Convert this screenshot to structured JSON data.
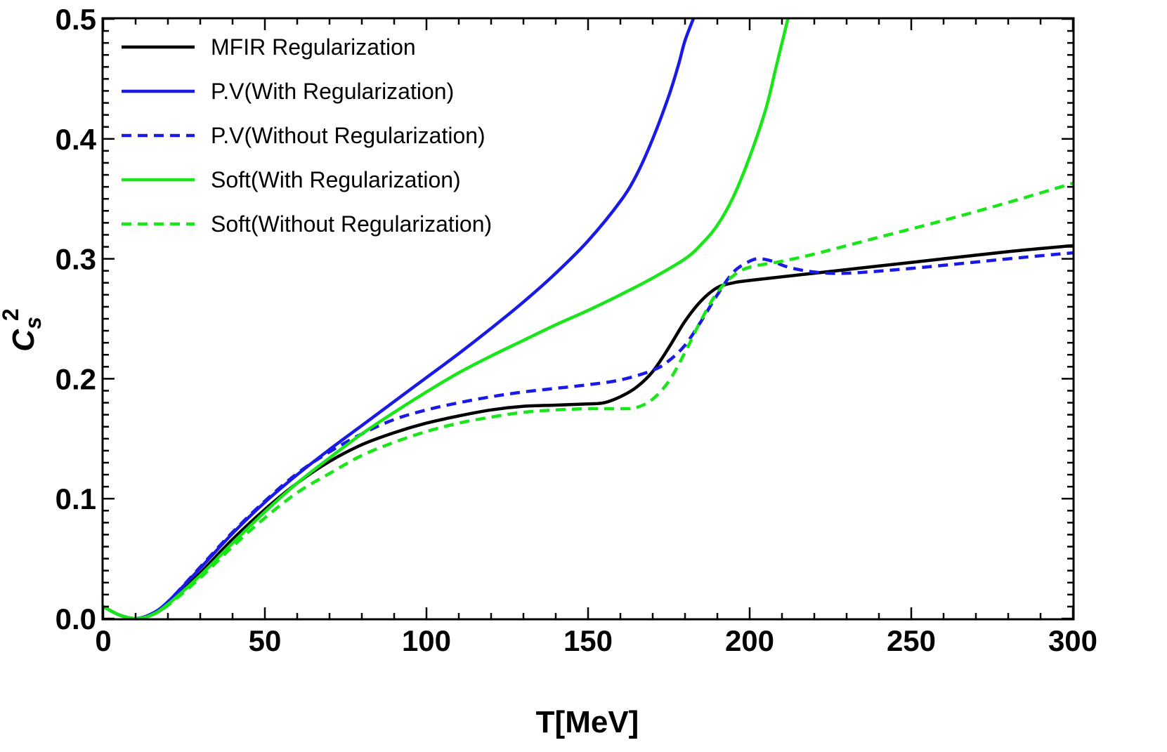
{
  "chart_data": {
    "type": "line",
    "xlabel": "T[MeV]",
    "ylabel": {
      "base": "C",
      "sub": "s",
      "sup": "2"
    },
    "xlim": [
      0,
      300
    ],
    "ylim": [
      0,
      0.5
    ],
    "xticks": [
      0,
      50,
      100,
      150,
      200,
      250,
      300
    ],
    "xtick_labels": [
      "0",
      "50",
      "100",
      "150",
      "200",
      "250",
      "300"
    ],
    "yticks": [
      0,
      0.1,
      0.2,
      0.3,
      0.4,
      0.5
    ],
    "ytick_labels": [
      "0.0",
      "0.1",
      "0.2",
      "0.3",
      "0.4",
      "0.5"
    ],
    "grid": false,
    "legend_position": "top-left",
    "series": [
      {
        "name": "MFIR Regularization",
        "color": "#000000",
        "dash": "solid",
        "x": [
          0,
          5,
          10,
          15,
          20,
          30,
          40,
          50,
          60,
          70,
          80,
          90,
          100,
          110,
          120,
          130,
          140,
          150,
          155,
          160,
          165,
          170,
          175,
          180,
          185,
          190,
          195,
          200,
          220,
          250,
          280,
          300
        ],
        "y": [
          0.01,
          0.003,
          0.0,
          0.003,
          0.012,
          0.038,
          0.066,
          0.091,
          0.113,
          0.131,
          0.145,
          0.155,
          0.163,
          0.169,
          0.174,
          0.177,
          0.178,
          0.179,
          0.18,
          0.185,
          0.193,
          0.206,
          0.226,
          0.248,
          0.265,
          0.276,
          0.28,
          0.282,
          0.288,
          0.297,
          0.306,
          0.311
        ]
      },
      {
        "name": "P.V(With Regularization)",
        "color": "#1a1ae6",
        "dash": "solid",
        "x": [
          0,
          5,
          10,
          15,
          20,
          30,
          40,
          50,
          60,
          70,
          80,
          90,
          100,
          110,
          120,
          130,
          140,
          150,
          160,
          165,
          170,
          175,
          178,
          180,
          183
        ],
        "y": [
          0.01,
          0.003,
          0.0,
          0.004,
          0.014,
          0.042,
          0.071,
          0.097,
          0.12,
          0.141,
          0.161,
          0.181,
          0.201,
          0.221,
          0.242,
          0.264,
          0.288,
          0.315,
          0.348,
          0.37,
          0.4,
          0.436,
          0.462,
          0.482,
          0.503
        ]
      },
      {
        "name": "P.V(Without Regularization)",
        "color": "#1a1ae6",
        "dash": "dashed",
        "x": [
          0,
          5,
          10,
          15,
          20,
          30,
          40,
          50,
          60,
          70,
          80,
          90,
          100,
          110,
          120,
          130,
          140,
          150,
          160,
          170,
          175,
          180,
          185,
          190,
          195,
          200,
          203,
          207,
          212,
          220,
          230,
          250,
          280,
          300
        ],
        "y": [
          0.01,
          0.003,
          0.0,
          0.004,
          0.014,
          0.043,
          0.072,
          0.098,
          0.121,
          0.139,
          0.154,
          0.166,
          0.174,
          0.18,
          0.185,
          0.189,
          0.192,
          0.195,
          0.199,
          0.207,
          0.215,
          0.228,
          0.248,
          0.27,
          0.289,
          0.298,
          0.3,
          0.298,
          0.293,
          0.289,
          0.288,
          0.292,
          0.3,
          0.305
        ]
      },
      {
        "name": "Soft(With Regularization)",
        "color": "#19e619",
        "dash": "solid",
        "x": [
          0,
          5,
          10,
          15,
          20,
          30,
          40,
          50,
          60,
          70,
          80,
          90,
          100,
          110,
          120,
          130,
          140,
          150,
          160,
          170,
          180,
          185,
          190,
          195,
          200,
          205,
          208,
          210,
          212
        ],
        "y": [
          0.01,
          0.003,
          0.0,
          0.003,
          0.012,
          0.036,
          0.063,
          0.089,
          0.113,
          0.134,
          0.154,
          0.172,
          0.189,
          0.205,
          0.219,
          0.232,
          0.245,
          0.257,
          0.27,
          0.284,
          0.3,
          0.312,
          0.328,
          0.352,
          0.385,
          0.425,
          0.458,
          0.48,
          0.502
        ]
      },
      {
        "name": "Soft(Without Regularization)",
        "color": "#19e619",
        "dash": "dashed",
        "x": [
          0,
          5,
          10,
          15,
          20,
          30,
          40,
          50,
          60,
          70,
          80,
          90,
          100,
          110,
          120,
          130,
          140,
          150,
          160,
          165,
          170,
          175,
          180,
          185,
          190,
          195,
          200,
          210,
          220,
          240,
          260,
          280,
          300
        ],
        "y": [
          0.01,
          0.003,
          0.0,
          0.003,
          0.011,
          0.034,
          0.06,
          0.084,
          0.105,
          0.121,
          0.136,
          0.147,
          0.156,
          0.163,
          0.168,
          0.172,
          0.174,
          0.175,
          0.175,
          0.176,
          0.183,
          0.198,
          0.222,
          0.249,
          0.272,
          0.286,
          0.293,
          0.298,
          0.304,
          0.318,
          0.332,
          0.347,
          0.363
        ]
      }
    ]
  }
}
